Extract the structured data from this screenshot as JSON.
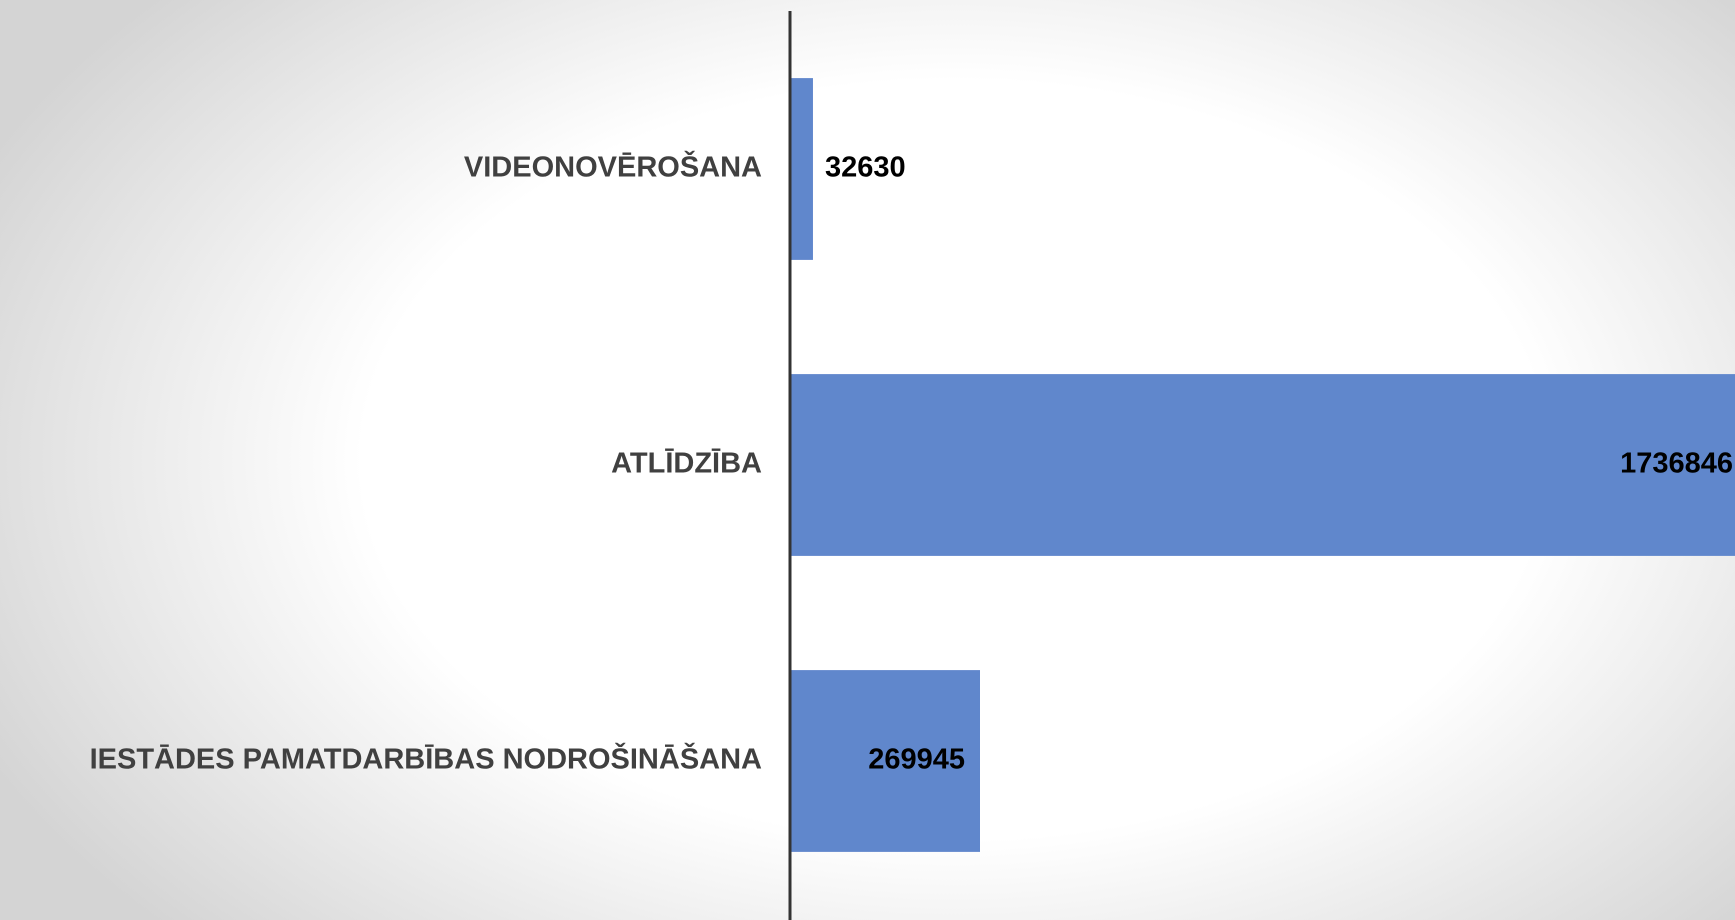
{
  "chart_data": {
    "type": "barh",
    "categories": [
      "VIDEONOVĒROŠANA",
      "ATLĪDZĪBA",
      "IESTĀDES PAMATDARBĪBAS NODROŠINĀŠANA"
    ],
    "values": [
      32630,
      1736846,
      269945
    ],
    "color": "#6087cc"
  }
}
